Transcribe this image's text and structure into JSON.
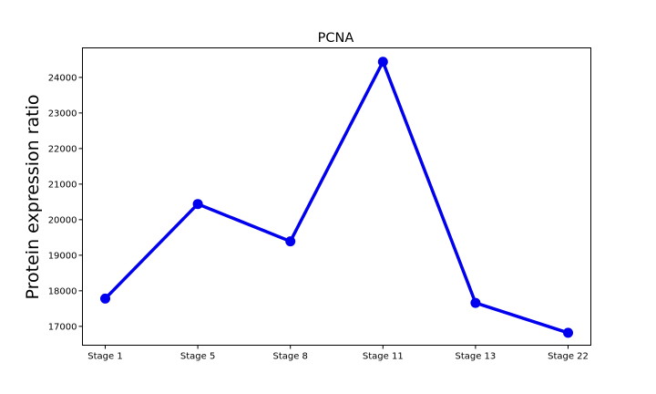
{
  "chart_data": {
    "type": "line",
    "title": "PCNA",
    "xlabel": "",
    "ylabel": "Protein expression ratio",
    "categories": [
      "Stage 1",
      "Stage 5",
      "Stage 8",
      "Stage 11",
      "Stage 13",
      "Stage 22"
    ],
    "series": [
      {
        "values": [
          17780,
          20440,
          19390,
          24440,
          17660,
          16820
        ]
      }
    ],
    "yticks": [
      17000,
      18000,
      19000,
      20000,
      21000,
      22000,
      23000,
      24000
    ],
    "ytick_labels": [
      "17000",
      "18000",
      "19000",
      "20000",
      "21000",
      "22000",
      "23000",
      "24000"
    ],
    "ylim": [
      16470,
      24830
    ],
    "grid": false,
    "line_color": "#0000ee"
  }
}
